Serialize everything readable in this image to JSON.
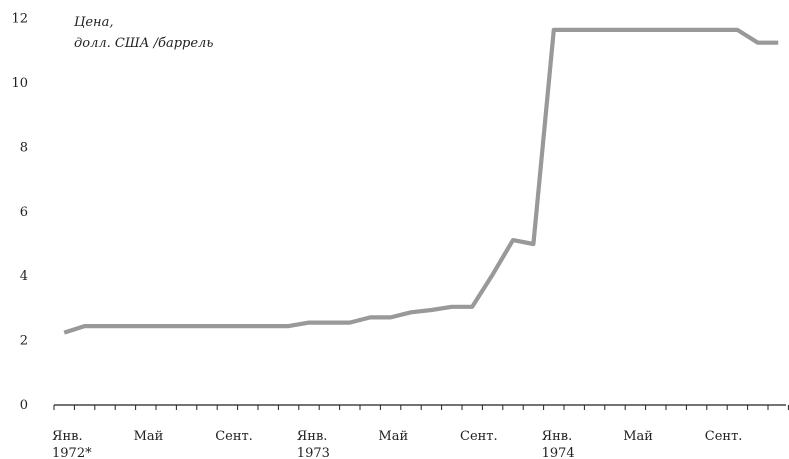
{
  "chart_data": {
    "type": "line",
    "ylabel_lines": [
      "Цена,",
      "долл. США /баррель"
    ],
    "ylim": [
      0,
      12
    ],
    "y_ticks": [
      "0",
      "2",
      "4",
      "6",
      "8",
      "10",
      "12"
    ],
    "x_ticks": [
      {
        "month": 0,
        "line1": "Янв.",
        "line2": "1972*"
      },
      {
        "month": 4,
        "line1": "Май",
        "line2": ""
      },
      {
        "month": 8,
        "line1": "Сент.",
        "line2": ""
      },
      {
        "month": 12,
        "line1": "Янв.",
        "line2": "1973"
      },
      {
        "month": 16,
        "line1": "Май",
        "line2": ""
      },
      {
        "month": 20,
        "line1": "Сент.",
        "line2": ""
      },
      {
        "month": 24,
        "line1": "Янв.",
        "line2": "1974"
      },
      {
        "month": 28,
        "line1": "Май",
        "line2": ""
      },
      {
        "month": 32,
        "line1": "Сент.",
        "line2": ""
      }
    ],
    "series": [
      {
        "color": "#999999",
        "points": [
          [
            0.5,
            2.25
          ],
          [
            1.5,
            2.45
          ],
          [
            2.5,
            2.45
          ],
          [
            3.5,
            2.45
          ],
          [
            4.5,
            2.45
          ],
          [
            5.5,
            2.45
          ],
          [
            6.5,
            2.45
          ],
          [
            7.5,
            2.45
          ],
          [
            8.5,
            2.45
          ],
          [
            9.5,
            2.45
          ],
          [
            10.5,
            2.45
          ],
          [
            11.5,
            2.45
          ],
          [
            12.5,
            2.56
          ],
          [
            13.5,
            2.56
          ],
          [
            14.5,
            2.56
          ],
          [
            15.5,
            2.72
          ],
          [
            16.5,
            2.72
          ],
          [
            17.5,
            2.88
          ],
          [
            18.5,
            2.95
          ],
          [
            19.5,
            3.05
          ],
          [
            20.5,
            3.05
          ],
          [
            21.5,
            4.05
          ],
          [
            22.5,
            5.12
          ],
          [
            23.5,
            5.0
          ],
          [
            24.5,
            11.65
          ],
          [
            25.5,
            11.65
          ],
          [
            26.5,
            11.65
          ],
          [
            27.5,
            11.65
          ],
          [
            28.5,
            11.65
          ],
          [
            29.5,
            11.65
          ],
          [
            30.5,
            11.65
          ],
          [
            31.5,
            11.65
          ],
          [
            32.5,
            11.65
          ],
          [
            33.5,
            11.65
          ],
          [
            34.5,
            11.25
          ],
          [
            35.5,
            11.25
          ]
        ]
      }
    ]
  }
}
